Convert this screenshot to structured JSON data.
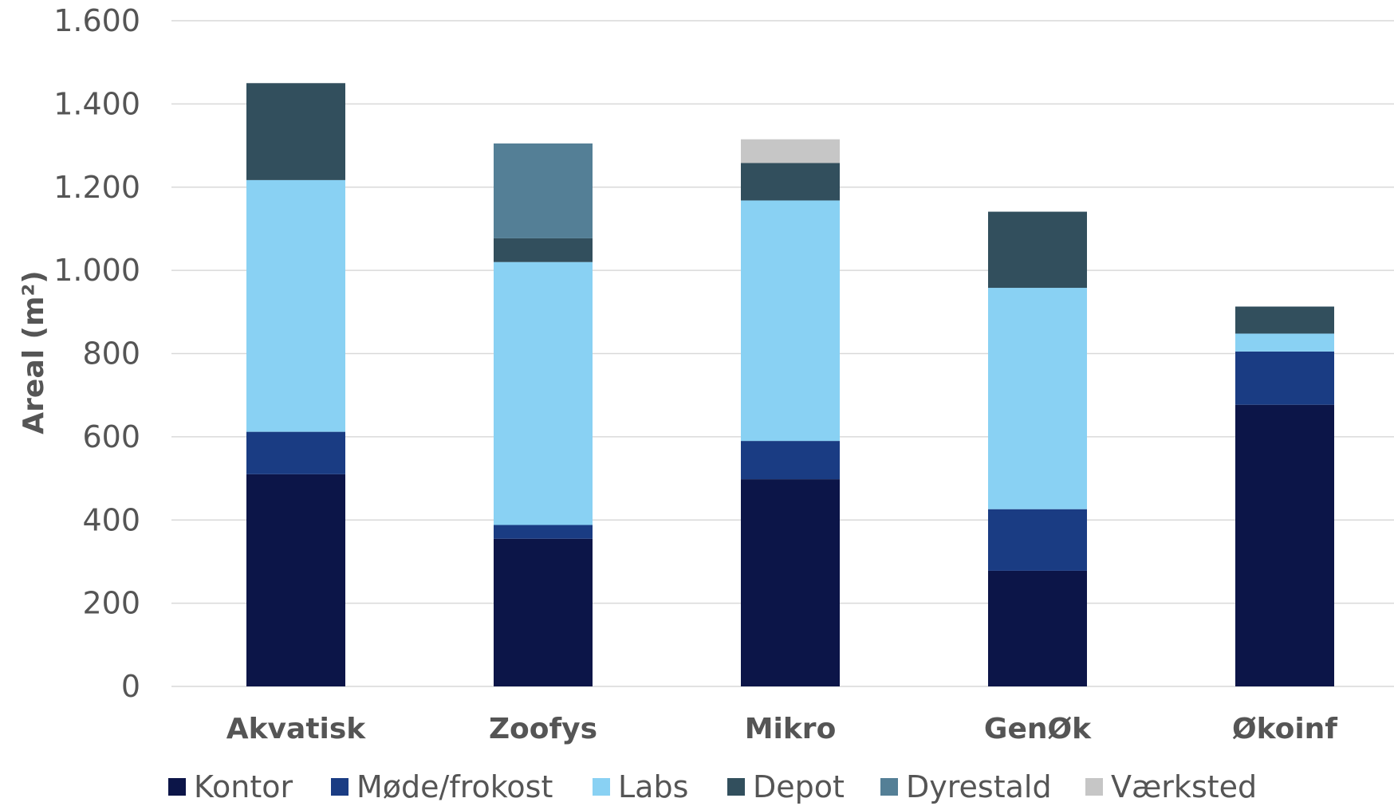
{
  "chart_data": {
    "type": "bar",
    "stacked": true,
    "categories": [
      "Akvatisk",
      "Zoofys",
      "Mikro",
      "GenØk",
      "Økoinf"
    ],
    "series": [
      {
        "name": "Kontor",
        "color": "#0c1548",
        "values": [
          510,
          355,
          498,
          278,
          677
        ]
      },
      {
        "name": "Møde/frokost",
        "color": "#1a3c83",
        "values": [
          102,
          33,
          92,
          148,
          128
        ]
      },
      {
        "name": "Labs",
        "color": "#89d1f3",
        "values": [
          605,
          632,
          578,
          532,
          43
        ]
      },
      {
        "name": "Depot",
        "color": "#324f5d",
        "values": [
          233,
          57,
          90,
          183,
          65
        ]
      },
      {
        "name": "Dyrestald",
        "color": "#547f96",
        "values": [
          0,
          228,
          0,
          0,
          0
        ]
      },
      {
        "name": "Værksted",
        "color": "#c6c6c6",
        "values": [
          0,
          0,
          57,
          0,
          0
        ]
      }
    ],
    "ylabel": "Areal (m²)",
    "ylim": [
      0,
      1600
    ],
    "yticks": [
      0,
      200,
      400,
      600,
      800,
      1000,
      1200,
      1400,
      1600
    ],
    "ytick_labels": [
      "0",
      "200",
      "400",
      "600",
      "800",
      "1.000",
      "1.200",
      "1.400",
      "1.600"
    ],
    "grid": true,
    "legend_position": "bottom"
  }
}
